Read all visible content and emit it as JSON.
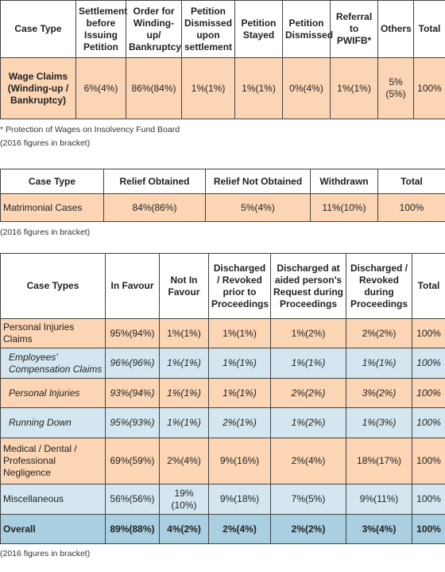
{
  "table1": {
    "header": [
      "Case Type",
      "Settlement before Issuing Petition",
      "Order for Winding-up/ Bankruptcy",
      "Petition Dismissed upon settlement",
      "Petition Stayed",
      "Petition Dismissed",
      "Referral to PWIFB*",
      "Others",
      "Total"
    ],
    "rows": [
      [
        "Wage Claims (Winding-up / Bankruptcy)",
        "6%(4%)",
        "86%(84%)",
        "1%(1%)",
        "1%(1%)",
        "0%(4%)",
        "1%(1%)",
        "5%(5%)",
        "100%"
      ]
    ]
  },
  "footnote": "* Protection of Wages on Insolvency Fund Board",
  "note1": "(2016 figures in bracket)",
  "table2": {
    "header": [
      "Case Type",
      "Relief Obtained",
      "Relief Not Obtained",
      "Withdrawn",
      "Total"
    ],
    "rows": [
      [
        "Matrimonial Cases",
        "84%(86%)",
        "5%(4%)",
        "11%(10%)",
        "100%"
      ]
    ]
  },
  "note2": "(2016 figures in bracket)",
  "table3": {
    "header": [
      "Case Types",
      "In Favour",
      "Not In Favour",
      "Discharged / Revoked prior to Proceedings",
      "Discharged at aided person's Request during Proceedings",
      "Discharged / Revoked during Proceedings",
      "Total"
    ],
    "rows": [
      [
        "Personal Injuries Claims",
        "95%(94%)",
        "1%(1%)",
        "1%(1%)",
        "1%(2%)",
        "2%(2%)",
        "100%"
      ],
      [
        "Employees' Compensation Claims",
        "96%(96%)",
        "1%(1%)",
        "1%(1%)",
        "1%(1%)",
        "1%(1%)",
        "100%"
      ],
      [
        "Personal Injuries",
        "93%(94%)",
        "1%(1%)",
        "1%(1%)",
        "2%(2%)",
        "3%(2%)",
        "100%"
      ],
      [
        "Running Down",
        "95%(93%)",
        "1%(1%)",
        "2%(1%)",
        "1%(2%)",
        "1%(3%)",
        "100%"
      ],
      [
        "Medical / Dental / Professional Negligence",
        "69%(59%)",
        "2%(4%)",
        "9%(16%)",
        "2%(4%)",
        "18%(17%)",
        "100%"
      ],
      [
        "Miscellaneous",
        "56%(56%)",
        "19%(10%)",
        "9%(18%)",
        "7%(5%)",
        "9%(11%)",
        "100%"
      ],
      [
        "Overall",
        "89%(88%)",
        "4%(2%)",
        "2%(4%)",
        "2%(2%)",
        "3%(4%)",
        "100%"
      ]
    ]
  },
  "note3": "(2016 figures in bracket)"
}
